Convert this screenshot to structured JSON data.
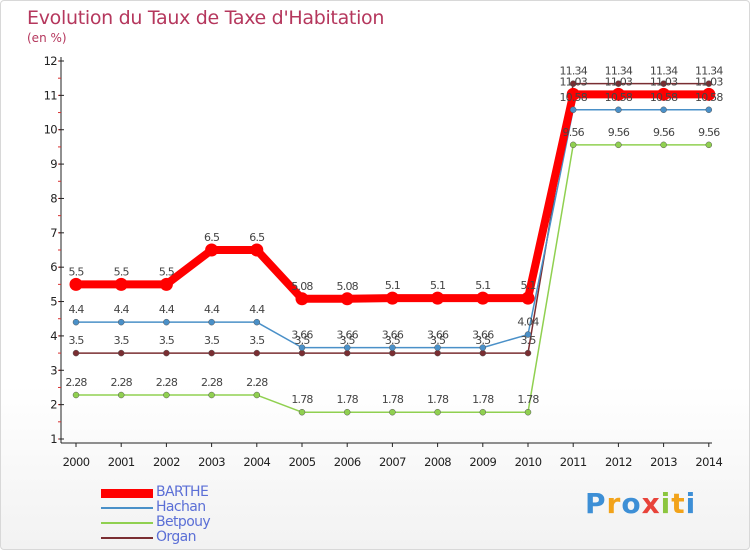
{
  "title": "Evolution du Taux de Taxe d'Habitation",
  "subtitle": "(en %)",
  "logo": {
    "letters": [
      "P",
      "r",
      "o",
      "x",
      "i",
      "t",
      "i"
    ],
    "colors": [
      "#3d8fd6",
      "#f2a31a",
      "#3d8fd6",
      "#e8433a",
      "#8cc63f",
      "#f2a31a",
      "#3d8fd6"
    ]
  },
  "chart_data": {
    "type": "line",
    "title": "Evolution du Taux de Taxe d'Habitation",
    "ylabel": "(en %)",
    "x": [
      "2000",
      "2001",
      "2002",
      "2003",
      "2004",
      "2005",
      "2006",
      "2007",
      "2008",
      "2009",
      "2010",
      "2011",
      "2012",
      "2013",
      "2014"
    ],
    "ylim": [
      1,
      12
    ],
    "yticks": [
      "1",
      "2",
      "3",
      "4",
      "5",
      "6",
      "7",
      "8",
      "9",
      "10",
      "11",
      "12"
    ],
    "grid": false,
    "legend_position": "bottom-left",
    "series": [
      {
        "name": "BARTHE",
        "color": "#ff0000",
        "values": [
          5.5,
          5.5,
          5.5,
          6.5,
          6.5,
          5.08,
          5.08,
          5.1,
          5.1,
          5.1,
          5.1,
          11.03,
          11.03,
          11.03,
          11.03
        ],
        "labels": [
          "5.5",
          "5.5",
          "5.5",
          "6.5",
          "6.5",
          "5.08",
          "5.08",
          "5.1",
          "5.1",
          "5.1",
          "5.1",
          "11.03",
          "11.03",
          "11.03",
          "11.03"
        ]
      },
      {
        "name": "Hachan",
        "color": "#4a90c8",
        "values": [
          4.4,
          4.4,
          4.4,
          4.4,
          4.4,
          3.66,
          3.66,
          3.66,
          3.66,
          3.66,
          4.04,
          10.58,
          10.58,
          10.58,
          10.58
        ],
        "labels": [
          "4.4",
          "4.4",
          "4.4",
          "4.4",
          "4.4",
          "3.66",
          "3.66",
          "3.66",
          "3.66",
          "3.66",
          "4.04",
          "10.58",
          "10.58",
          "10.58",
          "10.58"
        ]
      },
      {
        "name": "Betpouy",
        "color": "#90d050",
        "values": [
          2.28,
          2.28,
          2.28,
          2.28,
          2.28,
          1.78,
          1.78,
          1.78,
          1.78,
          1.78,
          1.78,
          9.56,
          9.56,
          9.56,
          9.56
        ],
        "labels": [
          "2.28",
          "2.28",
          "2.28",
          "2.28",
          "2.28",
          "1.78",
          "1.78",
          "1.78",
          "1.78",
          "1.78",
          "1.78",
          "9.56",
          "9.56",
          "9.56",
          "9.56"
        ]
      },
      {
        "name": "Organ",
        "color": "#7a2e32",
        "values": [
          3.5,
          3.5,
          3.5,
          3.5,
          3.5,
          3.5,
          3.5,
          3.5,
          3.5,
          3.5,
          3.5,
          11.34,
          11.34,
          11.34,
          11.34
        ],
        "labels": [
          "3.5",
          "3.5",
          "3.5",
          "3.5",
          "3.5",
          "3.5",
          "3.5",
          "3.5",
          "3.5",
          "3.5",
          "3.5",
          "11.34",
          "11.34",
          "11.34",
          "11.34"
        ]
      }
    ]
  }
}
